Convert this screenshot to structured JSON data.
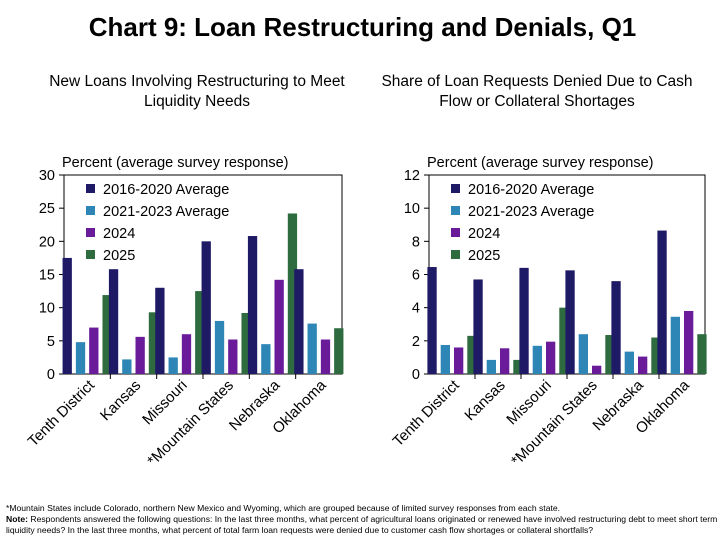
{
  "title": "Chart 9: Loan Restructuring and Denials, Q1",
  "chart_data": [
    {
      "type": "bar",
      "title": "New Loans Involving Restructuring to Meet Liquidity Needs",
      "ylabel": "Percent (average survey response)",
      "xlabel": "",
      "ylim": [
        0,
        30
      ],
      "yticks": [
        0,
        5,
        10,
        15,
        20,
        25,
        30
      ],
      "categories": [
        "Tenth District",
        "Kansas",
        "Missouri",
        "*Mountain States",
        "Nebraska",
        "Oklahoma"
      ],
      "legend_position": "top-left",
      "series": [
        {
          "name": "2016-2020 Average",
          "color": "#1f1a66",
          "values": [
            17.5,
            15.8,
            13.0,
            20.0,
            20.8,
            15.8
          ]
        },
        {
          "name": "2021-2023 Average",
          "color": "#2d86b6",
          "values": [
            4.8,
            2.2,
            2.5,
            8.0,
            4.5,
            7.6
          ]
        },
        {
          "name": "2024",
          "color": "#6a1b9a",
          "values": [
            7.0,
            5.6,
            6.0,
            5.2,
            14.2,
            5.2
          ]
        },
        {
          "name": "2025",
          "color": "#2e6b3f",
          "values": [
            11.9,
            9.3,
            12.5,
            9.2,
            24.2,
            6.9
          ]
        }
      ]
    },
    {
      "type": "bar",
      "title": "Share of Loan Requests Denied Due to Cash Flow or Collateral Shortages",
      "ylabel": "Percent (average survey response)",
      "xlabel": "",
      "ylim": [
        0,
        12
      ],
      "yticks": [
        0,
        2,
        4,
        6,
        8,
        10,
        12
      ],
      "categories": [
        "Tenth District",
        "Kansas",
        "Missouri",
        "*Mountain States",
        "Nebraska",
        "Oklahoma"
      ],
      "legend_position": "top-left",
      "series": [
        {
          "name": "2016-2020 Average",
          "color": "#1f1a66",
          "values": [
            6.45,
            5.7,
            6.4,
            6.25,
            5.6,
            8.65
          ]
        },
        {
          "name": "2021-2023 Average",
          "color": "#2d86b6",
          "values": [
            1.75,
            0.85,
            1.7,
            2.4,
            1.35,
            3.45
          ]
        },
        {
          "name": "2024",
          "color": "#6a1b9a",
          "values": [
            1.6,
            1.55,
            1.95,
            0.5,
            1.05,
            3.8
          ]
        },
        {
          "name": "2025",
          "color": "#2e6b3f",
          "values": [
            2.3,
            0.85,
            4.0,
            2.35,
            2.2,
            2.4
          ]
        }
      ]
    }
  ],
  "footnotes": {
    "mountain_states": "*Mountain States include Colorado, northern New Mexico and Wyoming, which are grouped because of limited survey responses from each state.",
    "note_label": "Note:",
    "note_text": " Respondents answered the following questions: In the last three months, what percent of agricultural loans originated or renewed have involved restructuring debt to meet short term liquidity needs? In the last three months, what percent of total farm loan requests were denied due to customer cash flow shortages or collateral shortfalls?"
  }
}
